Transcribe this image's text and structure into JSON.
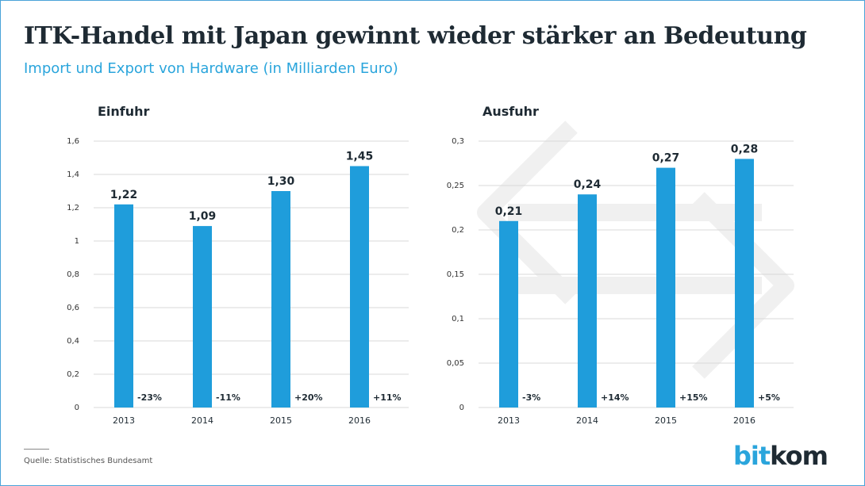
{
  "header": {
    "title": "ITK-Handel mit Japan gewinnt wieder stärker an Bedeutung",
    "subtitle": "Import und Export von Hardware (in Milliarden Euro)"
  },
  "footer": {
    "source": "Quelle: Statistisches Bundesamt",
    "logo_part1": "bit",
    "logo_part2": "kom"
  },
  "colors": {
    "bar": "#1f9ddb",
    "grid": "#d9d9d9",
    "accent": "#2aa5dc",
    "text": "#1e2a33",
    "arrow_watermark": "#f2f2f2"
  },
  "chart_data": [
    {
      "type": "bar",
      "title": "Einfuhr",
      "categories": [
        "2013",
        "2014",
        "2015",
        "2016"
      ],
      "values": [
        1.22,
        1.09,
        1.3,
        1.45
      ],
      "value_labels": [
        "1,22",
        "1,09",
        "1,30",
        "1,45"
      ],
      "changes": [
        "-23%",
        "-11%",
        "+20%",
        "+11%"
      ],
      "ylim": [
        0,
        1.6
      ],
      "yticks": [
        0,
        0.2,
        0.4,
        0.6,
        0.8,
        1,
        1.2,
        1.4,
        1.6
      ],
      "ytick_labels": [
        "0",
        "0,2",
        "0,4",
        "0,6",
        "0,8",
        "1",
        "1,2",
        "1,4",
        "1,6"
      ],
      "grid": true
    },
    {
      "type": "bar",
      "title": "Ausfuhr",
      "categories": [
        "2013",
        "2014",
        "2015",
        "2016"
      ],
      "values": [
        0.21,
        0.24,
        0.27,
        0.28
      ],
      "value_labels": [
        "0,21",
        "0,24",
        "0,27",
        "0,28"
      ],
      "changes": [
        "-3%",
        "+14%",
        "+15%",
        "+5%"
      ],
      "ylim": [
        0,
        0.3
      ],
      "yticks": [
        0,
        0.05,
        0.1,
        0.15,
        0.2,
        0.25,
        0.3
      ],
      "ytick_labels": [
        "0",
        "0,05",
        "0,1",
        "0,15",
        "0,2",
        "0,25",
        "0,3"
      ],
      "grid": true
    }
  ]
}
